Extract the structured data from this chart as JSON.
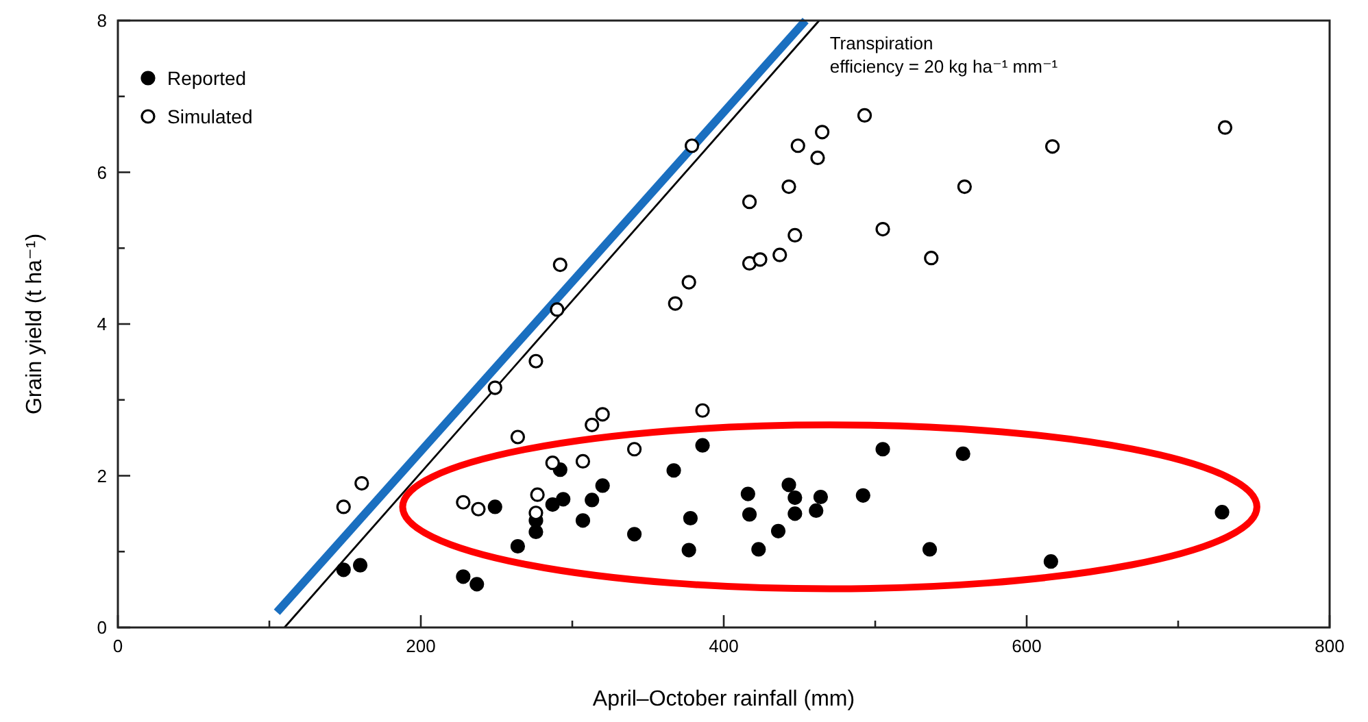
{
  "chart_data": {
    "type": "scatter",
    "xlabel": "April–October rainfall (mm)",
    "ylabel": "Grain yield (t ha⁻¹)",
    "xlim": [
      0,
      800
    ],
    "ylim": [
      0,
      8
    ],
    "xticks": [
      0,
      {
        "value": 100,
        "label": null
      },
      200,
      {
        "value": 300,
        "label": null
      },
      400,
      {
        "value": 500,
        "label": null
      },
      600,
      {
        "value": 700,
        "label": null
      },
      800
    ],
    "yticks": [
      0,
      {
        "value": 1,
        "label": null
      },
      2,
      {
        "value": 3,
        "label": null
      },
      4,
      {
        "value": 5,
        "label": null
      },
      6,
      {
        "value": 7,
        "label": null
      },
      8
    ],
    "grid": false,
    "legend": "top left",
    "marker": "circle",
    "annotations": [
      "Transpiration\nefficiency = 20 kg ha⁻¹ mm⁻¹"
    ],
    "series": [
      {
        "name": "Reported",
        "color": "#000000",
        "x": [
          149,
          160,
          228,
          237,
          249,
          264,
          276,
          276,
          287,
          292,
          294,
          313,
          320,
          307,
          341,
          367,
          386,
          378,
          377,
          416,
          417,
          423,
          436,
          443,
          447,
          447,
          461,
          464,
          492,
          505,
          536,
          558,
          616,
          729
        ],
        "values": [
          0.76,
          0.82,
          0.67,
          0.57,
          1.59,
          1.07,
          1.41,
          1.26,
          1.62,
          2.08,
          1.69,
          1.68,
          1.87,
          1.41,
          1.23,
          2.07,
          2.4,
          1.44,
          1.02,
          1.76,
          1.49,
          1.03,
          1.27,
          1.88,
          1.71,
          1.5,
          1.54,
          1.72,
          1.74,
          2.35,
          1.03,
          2.29,
          0.87,
          1.52
        ]
      },
      {
        "name": "Simulated",
        "color": "#000000",
        "x": [
          149,
          161,
          228,
          238,
          249,
          264,
          276,
          277,
          276,
          287,
          292,
          290,
          379,
          417,
          443,
          449,
          465,
          462,
          493,
          447,
          505,
          417,
          424,
          437,
          377,
          368,
          537,
          559,
          313,
          320,
          386,
          341,
          307,
          617,
          731
        ],
        "values": [
          1.59,
          1.9,
          1.65,
          1.56,
          3.16,
          2.51,
          3.51,
          1.75,
          1.51,
          2.17,
          4.78,
          4.19,
          6.35,
          5.61,
          5.81,
          6.35,
          6.53,
          6.19,
          6.75,
          5.17,
          5.25,
          4.8,
          4.85,
          4.91,
          4.55,
          4.27,
          4.87,
          5.81,
          2.67,
          2.81,
          2.86,
          2.35,
          2.19,
          6.34,
          6.59
        ]
      },
      {
        "type": "line",
        "marker": "none",
        "color": "#000000",
        "x": [
          110,
          463
        ],
        "values": [
          0,
          8
        ]
      },
      {
        "type": "line",
        "marker": "none",
        "color": "#1a6fc0",
        "x": [
          105,
          454
        ],
        "values": [
          0.2,
          8
        ]
      }
    ]
  }
}
